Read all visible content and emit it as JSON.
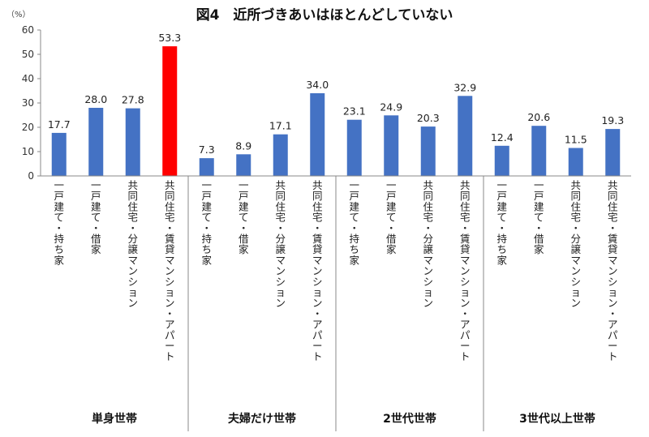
{
  "chart_data": {
    "type": "bar",
    "title": "図4　近所づきあいはほとんどしていない",
    "unit_label": "（%）",
    "ylim": [
      0,
      60
    ],
    "yticks": [
      0,
      10,
      20,
      30,
      40,
      50,
      60
    ],
    "grid": false,
    "colors": {
      "default": "#4472c4",
      "highlight": "#ff0000"
    },
    "groups": [
      {
        "name": "単身世帯",
        "bars": [
          {
            "category": "一戸建て・持ち家",
            "value": 17.7
          },
          {
            "category": "一戸建て・借家",
            "value": 28.0
          },
          {
            "category": "共同住宅・分譲マンション",
            "value": 27.8
          },
          {
            "category": "共同住宅・賃貸マンション・アパート",
            "value": 53.3,
            "highlight": true
          }
        ]
      },
      {
        "name": "夫婦だけ世帯",
        "bars": [
          {
            "category": "一戸建て・持ち家",
            "value": 7.3
          },
          {
            "category": "一戸建て・借家",
            "value": 8.9
          },
          {
            "category": "共同住宅・分譲マンション",
            "value": 17.1
          },
          {
            "category": "共同住宅・賃貸マンション・アパート",
            "value": 34.0
          }
        ]
      },
      {
        "name": "2世代世帯",
        "bars": [
          {
            "category": "一戸建て・持ち家",
            "value": 23.1
          },
          {
            "category": "一戸建て・借家",
            "value": 24.9
          },
          {
            "category": "共同住宅・分譲マンション",
            "value": 20.3
          },
          {
            "category": "共同住宅・賃貸マンション・アパート",
            "value": 32.9
          }
        ]
      },
      {
        "name": "3世代以上世帯",
        "bars": [
          {
            "category": "一戸建て・持ち家",
            "value": 12.4
          },
          {
            "category": "一戸建て・借家",
            "value": 20.6
          },
          {
            "category": "共同住宅・分譲マンション",
            "value": 11.5
          },
          {
            "category": "共同住宅・賃貸マンション・アパート",
            "value": 19.3
          }
        ]
      }
    ]
  }
}
